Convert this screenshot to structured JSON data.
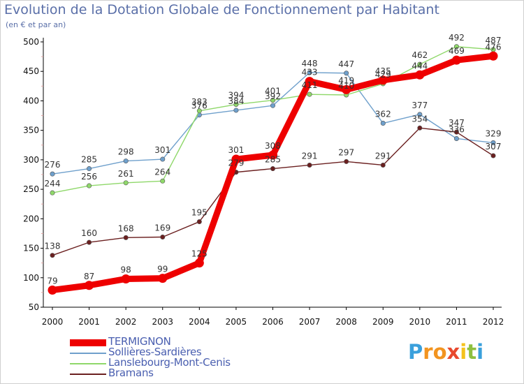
{
  "title": "Evolution de la Dotation Globale de Fonctionnement par Habitant",
  "subtitle": "(en € et par an)",
  "logo": {
    "text": "Proxiti",
    "letters": [
      "P",
      "r",
      "o",
      "x",
      "i",
      "t",
      "i"
    ],
    "colors": [
      "#3aa0dc",
      "#f29420",
      "#f29420",
      "#e8492e",
      "#f4c21d",
      "#8dbf3f",
      "#3aa0dc"
    ]
  },
  "chart_data": {
    "type": "line",
    "title": "Evolution de la Dotation Globale de Fonctionnement par Habitant",
    "subtitle": "(en € et par an)",
    "xlabel": "",
    "ylabel": "",
    "ylim": [
      50,
      500
    ],
    "yticks": [
      50,
      100,
      150,
      200,
      250,
      300,
      350,
      400,
      450,
      500
    ],
    "grid": false,
    "legend_position": "bottom-left",
    "categories": [
      "2000",
      "2001",
      "2002",
      "2003",
      "2004",
      "2005",
      "2006",
      "2007",
      "2008",
      "2009",
      "2010",
      "2011",
      "2012"
    ],
    "series": [
      {
        "name": "TERMIGNON",
        "color": "#ee0000",
        "values": [
          79,
          87,
          98,
          99,
          125,
          301,
          308,
          433,
          419,
          435,
          444,
          469,
          476
        ]
      },
      {
        "name": "Sollières-Sardières",
        "color": "#6fa0cc",
        "values": [
          276,
          285,
          298,
          301,
          376,
          384,
          392,
          448,
          447,
          362,
          377,
          336,
          329
        ]
      },
      {
        "name": "Lanslebourg-Mont-Cenis",
        "color": "#8fd86a",
        "values": [
          244,
          256,
          261,
          264,
          383,
          394,
          401,
          411,
          410,
          429,
          462,
          492,
          487
        ]
      },
      {
        "name": "Bramans",
        "color": "#6b2020",
        "values": [
          138,
          160,
          168,
          169,
          195,
          279,
          285,
          291,
          297,
          291,
          354,
          347,
          307
        ]
      }
    ],
    "point_labels": [
      [
        "79",
        "87",
        "98",
        "99",
        "125",
        "301",
        "308",
        "433",
        "419",
        "435",
        "444",
        "469",
        "476"
      ],
      [
        "276",
        "285",
        "298",
        "301",
        "376",
        "384",
        "392",
        "448",
        "447",
        "362",
        "377",
        "336",
        "329"
      ],
      [
        "244",
        "256",
        "261",
        "264",
        "383",
        "394",
        "401",
        "411",
        "410",
        "429",
        "462",
        "492",
        "487"
      ],
      [
        "138",
        "160",
        "168",
        "169",
        "195",
        "279",
        "285",
        "291",
        "297",
        "291",
        "354",
        "347",
        "307"
      ]
    ]
  }
}
